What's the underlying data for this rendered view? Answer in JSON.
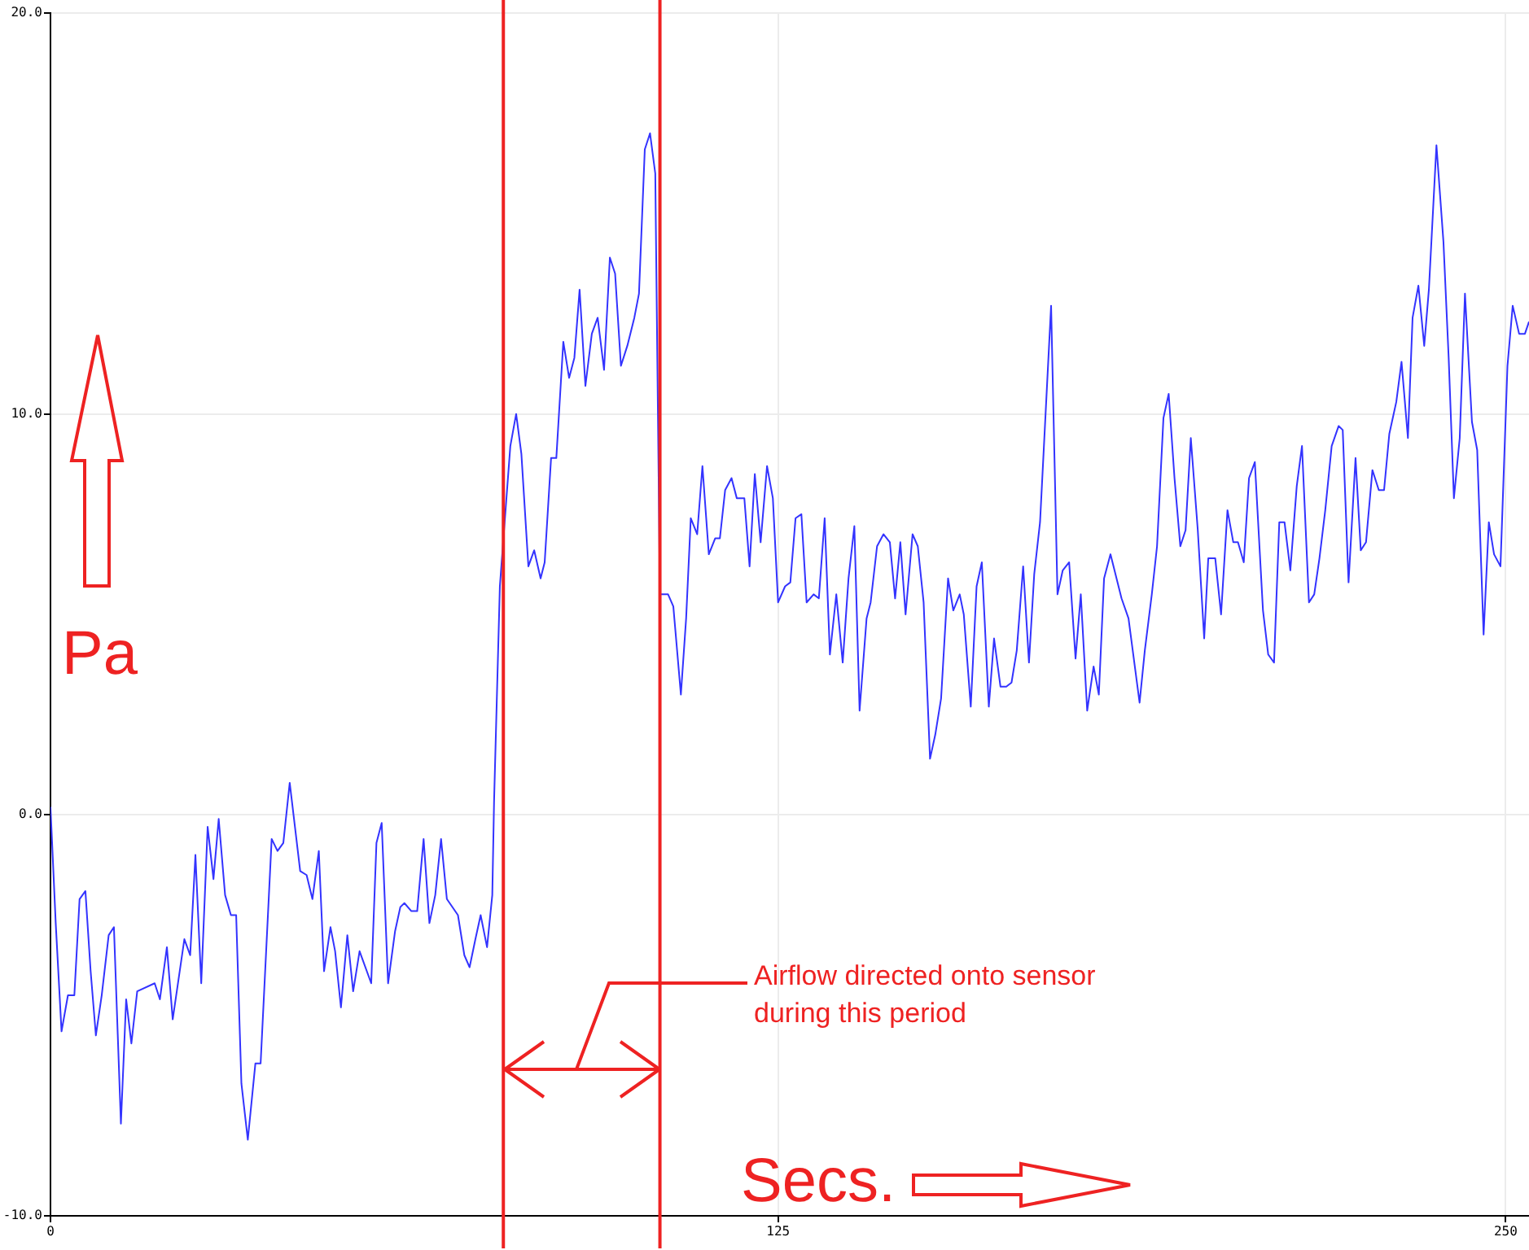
{
  "chart_data": {
    "type": "line",
    "xlabel": "Secs.",
    "ylabel": "Pa",
    "annotations": [
      "Airflow directed onto sensor during this period"
    ],
    "xlim": [
      0,
      254
    ],
    "xticks": [
      0,
      125,
      250
    ],
    "ylim": [
      -10,
      20
    ],
    "yticks": [
      {
        "value": -10,
        "label": "-10.0"
      },
      {
        "value": 0,
        "label": "0.0"
      },
      {
        "value": 10,
        "label": "10.0"
      },
      {
        "value": 20,
        "label": "20.0"
      }
    ],
    "grid": true,
    "legend": false,
    "marker": "none",
    "line_style": "solid",
    "ref_lines": [
      {
        "axis": "x",
        "value": 77.8,
        "label": null,
        "color": "#ee2222"
      },
      {
        "axis": "x",
        "value": 104.7,
        "label": null,
        "color": "#ee2222"
      }
    ],
    "series": [
      {
        "color": "#3333ff",
        "x": [
          0,
          0.9,
          1.9,
          3.0,
          4.1,
          5.0,
          6.0,
          6.9,
          7.8,
          8.8,
          10.0,
          10.9,
          12.1,
          13.0,
          13.9,
          14.9,
          17.9,
          18.8,
          20.0,
          21.0,
          23.0,
          24.0,
          24.9,
          25.9,
          27.0,
          28.0,
          28.9,
          30.0,
          31.0,
          31.9,
          32.8,
          33.9,
          35.2,
          36.1,
          38.0,
          39.0,
          40.0,
          41.1,
          42.9,
          44.0,
          45.0,
          46.1,
          47.0,
          48.1,
          48.9,
          49.9,
          51.0,
          52.0,
          53.1,
          55.1,
          56.0,
          56.9,
          58.0,
          59.2,
          60.1,
          60.8,
          62.0,
          63.0,
          64.1,
          65.1,
          66.1,
          67.1,
          68.1,
          70.0,
          71.1,
          72.0,
          73.0,
          73.9,
          75.0,
          75.9,
          76.2,
          77.2,
          79.0,
          80.0,
          80.9,
          82.1,
          83.1,
          84.2,
          84.9,
          86.0,
          86.9,
          88.1,
          89.1,
          90.0,
          90.9,
          91.9,
          93.0,
          94.0,
          95.1,
          96.1,
          97.0,
          98.0,
          99.1,
          100.3,
          101.1,
          102.1,
          103.0,
          103.9,
          104.7,
          106.1,
          107.0,
          108.3,
          109.2,
          110.0,
          111.1,
          112.0,
          113.1,
          114.2,
          115.0,
          115.9,
          117.0,
          117.9,
          119.2,
          120.1,
          121.0,
          122.0,
          123.1,
          124.1,
          125.0,
          126.2,
          127.1,
          128.0,
          129.0,
          129.9,
          131.1,
          132.0,
          133.0,
          133.9,
          135.0,
          136.1,
          137.1,
          138.1,
          139.0,
          140.2,
          140.9,
          142.0,
          143.1,
          144.2,
          145.1,
          146.0,
          146.9,
          148.1,
          149.0,
          150.0,
          151.1,
          152.0,
          153.0,
          154.2,
          155.1,
          156.2,
          156.9,
          158.1,
          159.1,
          160.0,
          161.2,
          162.1,
          163.2,
          164.2,
          165.1,
          166.0,
          167.1,
          168.1,
          169.0,
          170.0,
          171.9,
          173.0,
          173.9,
          175.0,
          176.1,
          177.0,
          178.1,
          179.2,
          180.1,
          181.0,
          182.1,
          184.0,
          185.2,
          187.1,
          188.0,
          189.2,
          190.1,
          191.2,
          192.1,
          193.1,
          194.1,
          195.0,
          195.9,
          197.1,
          198.2,
          198.9,
          200.1,
          201.1,
          202.2,
          203.2,
          204.0,
          205.0,
          205.9,
          206.9,
          208.3,
          209.2,
          210.2,
          211.1,
          212.0,
          213.0,
          214.1,
          215.0,
          216.2,
          217.1,
          218.0,
          219.0,
          220.1,
          221.3,
          222.0,
          223.0,
          224.2,
          225.1,
          226.0,
          227.1,
          228.2,
          229.1,
          230.0,
          231.2,
          232.1,
          233.2,
          234.0,
          235.0,
          236.0,
          236.8,
          238.1,
          239.3,
          240.2,
          241.1,
          242.1,
          243.0,
          244.2,
          245.1,
          246.2,
          247.1,
          248.0,
          249.1,
          250.3,
          251.2,
          252.3,
          253.3,
          254.0
        ],
        "values": [
          0.2,
          -2.7,
          -5.4,
          -4.5,
          -4.5,
          -2.1,
          -1.9,
          -3.9,
          -5.5,
          -4.5,
          -3.0,
          -2.8,
          -7.7,
          -4.6,
          -5.7,
          -4.4,
          -4.2,
          -4.6,
          -3.3,
          -5.1,
          -3.1,
          -3.5,
          -1.0,
          -4.2,
          -0.3,
          -1.6,
          -0.1,
          -2.0,
          -2.5,
          -2.5,
          -6.7,
          -8.1,
          -6.2,
          -6.2,
          -0.6,
          -0.9,
          -0.7,
          0.8,
          -1.4,
          -1.5,
          -2.1,
          -0.9,
          -3.9,
          -2.8,
          -3.4,
          -4.8,
          -3.0,
          -4.4,
          -3.4,
          -4.2,
          -0.7,
          -0.2,
          -4.2,
          -2.9,
          -2.3,
          -2.2,
          -2.4,
          -2.4,
          -0.6,
          -2.7,
          -2.0,
          -0.6,
          -2.1,
          -2.5,
          -3.5,
          -3.8,
          -3.1,
          -2.5,
          -3.3,
          -2.0,
          0.3,
          5.7,
          9.2,
          10.0,
          9.0,
          6.2,
          6.6,
          5.9,
          6.3,
          8.9,
          8.9,
          11.8,
          10.9,
          11.4,
          13.1,
          10.7,
          12.0,
          12.4,
          11.1,
          13.9,
          13.5,
          11.2,
          11.7,
          12.4,
          13.0,
          16.6,
          17.0,
          16.0,
          5.5,
          5.5,
          5.2,
          3.0,
          4.9,
          7.4,
          7.0,
          8.7,
          6.5,
          6.9,
          6.9,
          8.1,
          8.4,
          7.9,
          7.9,
          6.2,
          8.5,
          6.8,
          8.7,
          7.9,
          5.3,
          5.7,
          5.8,
          7.4,
          7.5,
          5.3,
          5.5,
          5.4,
          7.4,
          4.0,
          5.5,
          3.8,
          5.9,
          7.2,
          2.6,
          4.9,
          5.3,
          6.7,
          7.0,
          6.8,
          5.4,
          6.8,
          5.0,
          7.0,
          6.7,
          5.3,
          1.4,
          2.0,
          2.9,
          5.9,
          5.1,
          5.5,
          5.0,
          2.7,
          5.7,
          6.3,
          2.7,
          4.4,
          3.2,
          3.2,
          3.3,
          4.1,
          6.2,
          3.8,
          6.0,
          7.3,
          12.7,
          5.5,
          6.1,
          6.3,
          3.9,
          5.5,
          2.6,
          3.7,
          3.0,
          5.9,
          6.5,
          5.4,
          4.9,
          2.8,
          4.1,
          5.5,
          6.7,
          9.9,
          10.5,
          8.4,
          6.7,
          7.1,
          9.4,
          7.1,
          4.4,
          6.4,
          6.4,
          5.0,
          7.6,
          6.8,
          6.8,
          6.3,
          8.4,
          8.8,
          5.1,
          4.0,
          3.8,
          7.3,
          7.3,
          6.1,
          8.2,
          9.2,
          5.3,
          5.5,
          6.4,
          7.6,
          9.2,
          9.7,
          9.6,
          5.8,
          8.9,
          6.6,
          6.8,
          8.6,
          8.1,
          8.1,
          9.5,
          10.3,
          11.3,
          9.4,
          12.4,
          13.2,
          11.7,
          13.1,
          16.7,
          14.3,
          11.4,
          7.9,
          9.4,
          13.0,
          9.8,
          9.1,
          4.5,
          7.3,
          6.5,
          6.2,
          11.2,
          12.7,
          12.0,
          12.0,
          12.3
        ]
      }
    ]
  }
}
